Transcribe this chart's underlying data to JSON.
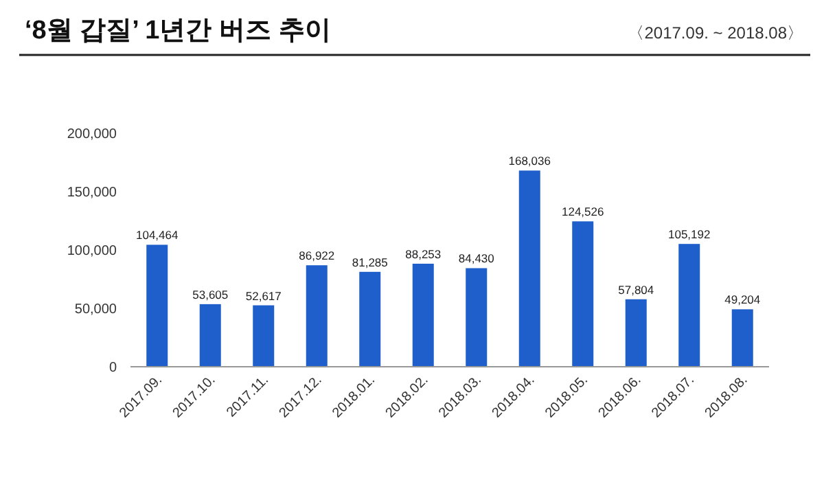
{
  "chart_data": {
    "type": "bar",
    "title": "‘8월 갑질’ 1년간 버즈 추이",
    "subtitle": "〈2017.09. ~ 2018.08〉",
    "categories": [
      "2017.09.",
      "2017.10.",
      "2017.11.",
      "2017.12.",
      "2018.01.",
      "2018.02.",
      "2018.03.",
      "2018.04.",
      "2018.05.",
      "2018.06.",
      "2018.07.",
      "2018.08."
    ],
    "values": [
      104464,
      53605,
      52617,
      86922,
      81285,
      88253,
      84430,
      168036,
      124526,
      57804,
      105192,
      49204
    ],
    "value_labels": [
      "104,464",
      "53,605",
      "52,617",
      "86,922",
      "81,285",
      "88,253",
      "84,430",
      "168,036",
      "124,526",
      "57,804",
      "105,192",
      "49,204"
    ],
    "color": "#1f5fcc",
    "ylim": [
      0,
      200000
    ],
    "yticks": [
      {
        "value": 0,
        "label": "0"
      },
      {
        "value": 50000,
        "label": "50,000"
      },
      {
        "value": 100000,
        "label": "100,000"
      },
      {
        "value": 150000,
        "label": "150,000"
      },
      {
        "value": 200000,
        "label": "200,000"
      }
    ],
    "grid": false
  }
}
